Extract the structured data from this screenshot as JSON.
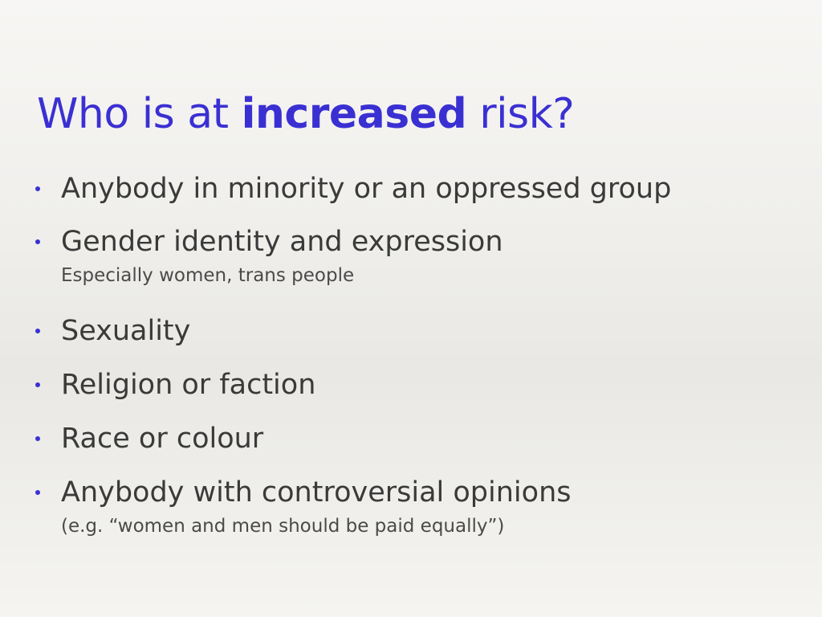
{
  "slide": {
    "title_pre": "Who is at ",
    "title_bold": "increased",
    "title_post": " risk?",
    "bullets": [
      {
        "text": "Anybody in minority or an oppressed group",
        "sub": ""
      },
      {
        "text": "Gender identity and expression",
        "sub": "Especially women, trans people"
      },
      {
        "text": "Sexuality",
        "sub": ""
      },
      {
        "text": "Religion or faction",
        "sub": ""
      },
      {
        "text": "Race or colour",
        "sub": ""
      },
      {
        "text": "Anybody with controversial opinions",
        "sub": "(e.g. “women and men should be paid equally”)"
      }
    ]
  },
  "colors": {
    "accent": "#3a30d2",
    "text": "#3a3a3a"
  }
}
